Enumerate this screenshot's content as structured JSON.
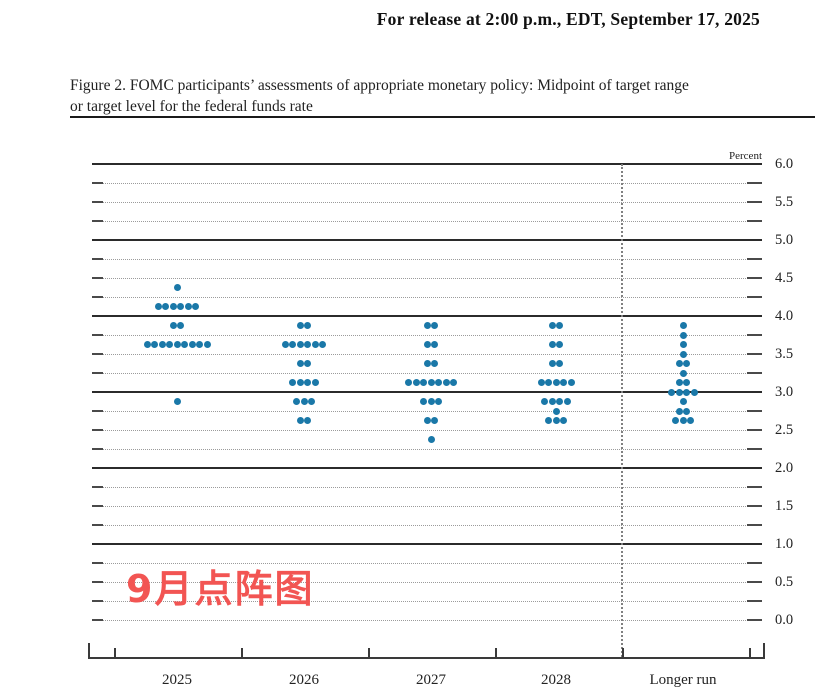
{
  "release_line": "For release at 2:00 p.m., EDT, September 17, 2025",
  "caption": {
    "line1": "Figure 2. FOMC participants’ assessments of appropriate monetary policy: Midpoint of target range",
    "line2": "or target level for the federal funds rate"
  },
  "annotation": {
    "text": "9月点阵图",
    "color": "#f25553"
  },
  "chart_data": {
    "type": "scatter",
    "title": "FOMC participants’ assessments of appropriate monetary policy: Midpoint of target range or target level for the federal funds rate",
    "unit_label": "Percent",
    "ylabel": "Percent",
    "ylim": [
      0.0,
      6.0
    ],
    "gridline_step": 0.25,
    "solid_gridlines": [
      6.0,
      5.0,
      4.0,
      3.0,
      2.0,
      1.0
    ],
    "y_tick_labels": [
      "6.0",
      "5.5",
      "5.0",
      "4.5",
      "4.0",
      "3.5",
      "3.0",
      "2.5",
      "2.0",
      "1.5",
      "1.0",
      "0.5",
      "0.0"
    ],
    "legend_position": "none",
    "grid": "on",
    "dot_color": "#1a78a8",
    "each_dot_represents": "one FOMC participant's assessment",
    "columns": [
      {
        "label": "2025",
        "dots": [
          {
            "rate": 4.375,
            "count": 1
          },
          {
            "rate": 4.125,
            "count": 6
          },
          {
            "rate": 3.875,
            "count": 2
          },
          {
            "rate": 3.625,
            "count": 9
          },
          {
            "rate": 2.875,
            "count": 1
          }
        ]
      },
      {
        "label": "2026",
        "dots": [
          {
            "rate": 3.875,
            "count": 2
          },
          {
            "rate": 3.625,
            "count": 6
          },
          {
            "rate": 3.375,
            "count": 2
          },
          {
            "rate": 3.125,
            "count": 4
          },
          {
            "rate": 2.875,
            "count": 3
          },
          {
            "rate": 2.625,
            "count": 2
          }
        ]
      },
      {
        "label": "2027",
        "dots": [
          {
            "rate": 3.875,
            "count": 2
          },
          {
            "rate": 3.625,
            "count": 2
          },
          {
            "rate": 3.375,
            "count": 2
          },
          {
            "rate": 3.125,
            "count": 7
          },
          {
            "rate": 2.875,
            "count": 3
          },
          {
            "rate": 2.625,
            "count": 2
          },
          {
            "rate": 2.375,
            "count": 1
          }
        ]
      },
      {
        "label": "2028",
        "dots": [
          {
            "rate": 3.875,
            "count": 2
          },
          {
            "rate": 3.625,
            "count": 2
          },
          {
            "rate": 3.375,
            "count": 2
          },
          {
            "rate": 3.125,
            "count": 5
          },
          {
            "rate": 2.875,
            "count": 4
          },
          {
            "rate": 2.75,
            "count": 1
          },
          {
            "rate": 2.625,
            "count": 3
          }
        ]
      },
      {
        "label": "Longer run",
        "dots": [
          {
            "rate": 3.875,
            "count": 1
          },
          {
            "rate": 3.75,
            "count": 1
          },
          {
            "rate": 3.625,
            "count": 1
          },
          {
            "rate": 3.5,
            "count": 1
          },
          {
            "rate": 3.375,
            "count": 2
          },
          {
            "rate": 3.25,
            "count": 1
          },
          {
            "rate": 3.125,
            "count": 2
          },
          {
            "rate": 3.0,
            "count": 4
          },
          {
            "rate": 2.875,
            "count": 1
          },
          {
            "rate": 2.75,
            "count": 2
          },
          {
            "rate": 2.625,
            "count": 3
          }
        ]
      }
    ]
  }
}
